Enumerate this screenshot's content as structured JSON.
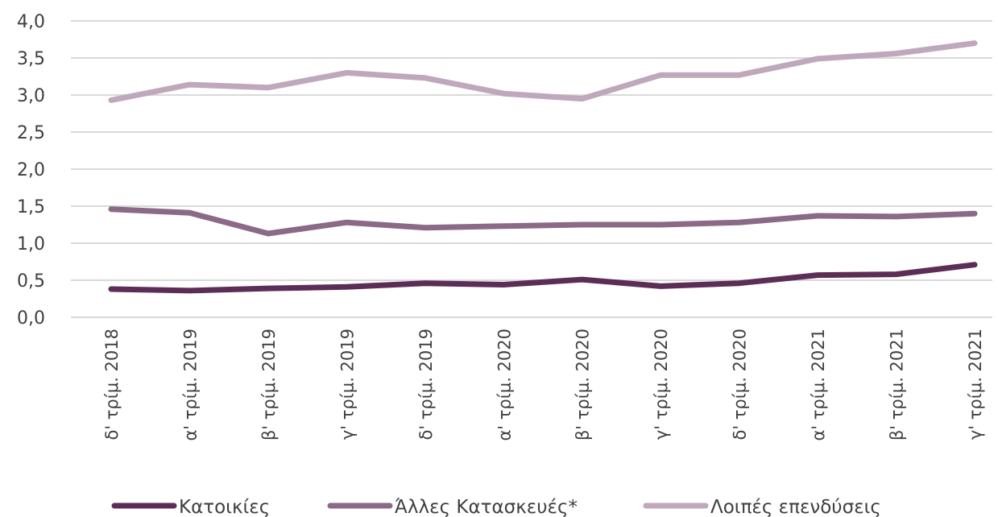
{
  "chart_data": {
    "type": "line",
    "title": "",
    "xlabel": "",
    "ylabel": "",
    "ylim": [
      0,
      4
    ],
    "yticks": [
      "0,0",
      "0,5",
      "1,0",
      "1,5",
      "2,0",
      "2,5",
      "3,0",
      "3,5",
      "4,0"
    ],
    "grid": true,
    "legend_position": "bottom",
    "categories": [
      "δ' τρίμ. 2018",
      "α' τρίμ. 2019",
      "β' τρίμ. 2019",
      "γ' τρίμ. 2019",
      "δ' τρίμ. 2019",
      "α' τρίμ. 2020",
      "β' τρίμ. 2020",
      "γ' τρίμ. 2020",
      "δ' τρίμ. 2020",
      "α' τρίμ. 2021",
      "β' τρίμ. 2021",
      "γ' τρίμ. 2021"
    ],
    "series": [
      {
        "name": "Κατοικίες",
        "color": "#5c2d56",
        "values": [
          0.38,
          0.36,
          0.39,
          0.41,
          0.46,
          0.44,
          0.51,
          0.42,
          0.46,
          0.57,
          0.58,
          0.71
        ]
      },
      {
        "name": "Άλλες Κατασκευές*",
        "color": "#8a6a86",
        "values": [
          1.46,
          1.41,
          1.13,
          1.28,
          1.21,
          1.23,
          1.25,
          1.25,
          1.28,
          1.37,
          1.36,
          1.4
        ]
      },
      {
        "name": "Λοιπές επενδύσεις",
        "color": "#bfa8bc",
        "values": [
          2.93,
          3.14,
          3.1,
          3.3,
          3.23,
          3.02,
          2.95,
          3.27,
          3.27,
          3.49,
          3.56,
          3.7
        ]
      }
    ]
  }
}
